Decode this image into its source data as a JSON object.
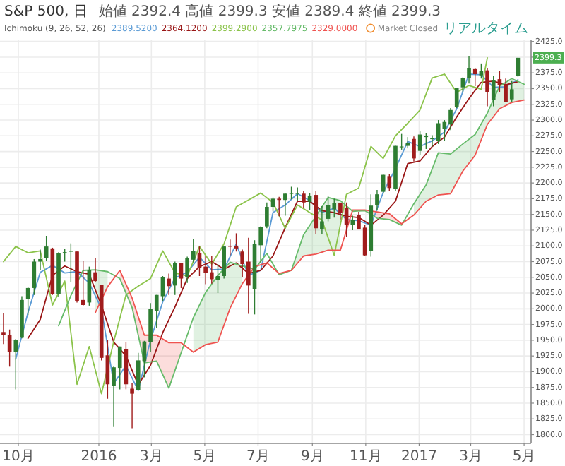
{
  "chart_data": {
    "type": "candlestick",
    "title": "S&P 500, 日",
    "subtitle": "始値 2392.4 高値 2399.3 安値 2389.4 終値 2399.3",
    "annotations": [
      "Ichimoku (9, 26, 52, 26)",
      "2389.5200",
      "2364.1200",
      "2399.2900",
      "2357.7975",
      "2329.0000",
      "Market Closed",
      "リアルタイム",
      "2399.3"
    ],
    "x": [
      "2015-09-14",
      "2015-09-21",
      "2015-09-28",
      "2015-10-05",
      "2015-10-12",
      "2015-10-19",
      "2015-10-26",
      "2015-11-02",
      "2015-11-09",
      "2015-11-16",
      "2015-11-23",
      "2015-11-30",
      "2015-12-07",
      "2015-12-14",
      "2015-12-21",
      "2015-12-28",
      "2016-01-04",
      "2016-01-11",
      "2016-01-18",
      "2016-01-25",
      "2016-02-01",
      "2016-02-08",
      "2016-02-15",
      "2016-02-22",
      "2016-02-29",
      "2016-03-07",
      "2016-03-14",
      "2016-03-21",
      "2016-03-28",
      "2016-04-04",
      "2016-04-11",
      "2016-04-18",
      "2016-04-25",
      "2016-05-02",
      "2016-05-09",
      "2016-05-16",
      "2016-05-23",
      "2016-05-30",
      "2016-06-06",
      "2016-06-13",
      "2016-06-20",
      "2016-06-27",
      "2016-07-04",
      "2016-07-11",
      "2016-07-18",
      "2016-07-25",
      "2016-08-01",
      "2016-08-08",
      "2016-08-15",
      "2016-08-22",
      "2016-08-29",
      "2016-09-05",
      "2016-09-12",
      "2016-09-19",
      "2016-09-26",
      "2016-10-03",
      "2016-10-10",
      "2016-10-17",
      "2016-10-24",
      "2016-10-31",
      "2016-11-07",
      "2016-11-14",
      "2016-11-21",
      "2016-11-28",
      "2016-12-05",
      "2016-12-12",
      "2016-12-19",
      "2016-12-26",
      "2017-01-02",
      "2017-01-09",
      "2017-01-16",
      "2017-01-23",
      "2017-01-30",
      "2017-02-06",
      "2017-02-13",
      "2017-02-20",
      "2017-02-27",
      "2017-03-06",
      "2017-03-13",
      "2017-03-20",
      "2017-03-27",
      "2017-04-03",
      "2017-04-10",
      "2017-04-17",
      "2017-04-24"
    ],
    "ohlc": [
      [
        1963,
        1993,
        1944,
        1958
      ],
      [
        1958,
        1967,
        1908,
        1931
      ],
      [
        1931,
        1952,
        1872,
        1951
      ],
      [
        1954,
        2020,
        1953,
        2014
      ],
      [
        2015,
        2034,
        1990,
        2033
      ],
      [
        2033,
        2079,
        2022,
        2075
      ],
      [
        2075,
        2094,
        2062,
        2079
      ],
      [
        2081,
        2116,
        2076,
        2099
      ],
      [
        2096,
        2097,
        2022,
        2023
      ],
      [
        2023,
        2090,
        2019,
        2089
      ],
      [
        2089,
        2095,
        2075,
        2090
      ],
      [
        2092,
        2104,
        2042,
        2092
      ],
      [
        2091,
        2091,
        2010,
        2012
      ],
      [
        2014,
        2076,
        2005,
        2006
      ],
      [
        2010,
        2067,
        2005,
        2061
      ],
      [
        2058,
        2081,
        2043,
        2044
      ],
      [
        2038,
        2038,
        1918,
        1922
      ],
      [
        1926,
        1950,
        1857,
        1880
      ],
      [
        1878,
        1908,
        1812,
        1907
      ],
      [
        1906,
        1940,
        1872,
        1940
      ],
      [
        1936,
        1947,
        1872,
        1880
      ],
      [
        1873,
        1882,
        1810,
        1865
      ],
      [
        1871,
        1930,
        1871,
        1918
      ],
      [
        1917,
        1949,
        1891,
        1948
      ],
      [
        1947,
        2009,
        1931,
        2000
      ],
      [
        1996,
        2022,
        1969,
        2022
      ],
      [
        2020,
        2052,
        2012,
        2050
      ],
      [
        2048,
        2056,
        2022,
        2036
      ],
      [
        2037,
        2075,
        2022,
        2073
      ],
      [
        2073,
        2073,
        2033,
        2048
      ],
      [
        2050,
        2083,
        2041,
        2081
      ],
      [
        2078,
        2111,
        2074,
        2092
      ],
      [
        2088,
        2099,
        2052,
        2065
      ],
      [
        2067,
        2084,
        2039,
        2057
      ],
      [
        2058,
        2084,
        2040,
        2047
      ],
      [
        2046,
        2071,
        2025,
        2052
      ],
      [
        2052,
        2100,
        2048,
        2099
      ],
      [
        2100,
        2110,
        2085,
        2099
      ],
      [
        2100,
        2120,
        2091,
        2096
      ],
      [
        2091,
        2094,
        2050,
        2071
      ],
      [
        2075,
        2113,
        1992,
        2037
      ],
      [
        2031,
        2109,
        1991,
        2103
      ],
      [
        2101,
        2131,
        2074,
        2130
      ],
      [
        2131,
        2169,
        2128,
        2162
      ],
      [
        2162,
        2177,
        2155,
        2175
      ],
      [
        2175,
        2178,
        2147,
        2173
      ],
      [
        2173,
        2183,
        2148,
        2183
      ],
      [
        2183,
        2194,
        2174,
        2184
      ],
      [
        2183,
        2193,
        2172,
        2184
      ],
      [
        2183,
        2187,
        2160,
        2169
      ],
      [
        2170,
        2184,
        2157,
        2180
      ],
      [
        2181,
        2187,
        2119,
        2128
      ],
      [
        2127,
        2163,
        2119,
        2139
      ],
      [
        2143,
        2180,
        2139,
        2165
      ],
      [
        2158,
        2175,
        2145,
        2168
      ],
      [
        2168,
        2169,
        2142,
        2153
      ],
      [
        2160,
        2169,
        2114,
        2133
      ],
      [
        2133,
        2148,
        2125,
        2141
      ],
      [
        2149,
        2154,
        2126,
        2126
      ],
      [
        2129,
        2133,
        2084,
        2085
      ],
      [
        2092,
        2182,
        2083,
        2164
      ],
      [
        2165,
        2189,
        2156,
        2182
      ],
      [
        2186,
        2214,
        2183,
        2213
      ],
      [
        2211,
        2214,
        2187,
        2192
      ],
      [
        2191,
        2259,
        2187,
        2259
      ],
      [
        2258,
        2278,
        2253,
        2258
      ],
      [
        2259,
        2273,
        2255,
        2263
      ],
      [
        2270,
        2274,
        2234,
        2239
      ],
      [
        2251,
        2282,
        2245,
        2277
      ],
      [
        2273,
        2279,
        2254,
        2275
      ],
      [
        2270,
        2276,
        2258,
        2271
      ],
      [
        2267,
        2300,
        2262,
        2295
      ],
      [
        2286,
        2300,
        2267,
        2297
      ],
      [
        2293,
        2319,
        2284,
        2316
      ],
      [
        2321,
        2351,
        2319,
        2351
      ],
      [
        2352,
        2368,
        2345,
        2367
      ],
      [
        2367,
        2401,
        2358,
        2383
      ],
      [
        2381,
        2382,
        2354,
        2373
      ],
      [
        2371,
        2390,
        2366,
        2378
      ],
      [
        2379,
        2382,
        2322,
        2344
      ],
      [
        2332,
        2370,
        2322,
        2363
      ],
      [
        2365,
        2378,
        2344,
        2355
      ],
      [
        2357,
        2366,
        2328,
        2329
      ],
      [
        2333,
        2362,
        2328,
        2349
      ],
      [
        2370,
        2399,
        2369,
        2399
      ]
    ],
    "colors": [
      "#a01c1c",
      "#a01c1c",
      "#2e7d32",
      "#2e7d32",
      "#2e7d32",
      "#2e7d32",
      "#2e7d32",
      "#2e7d32",
      "#a01c1c",
      "#2e7d32",
      "#2e7d32",
      "#2e7d32",
      "#a01c1c",
      "#a01c1c",
      "#2e7d32",
      "#a01c1c",
      "#a01c1c",
      "#a01c1c",
      "#2e7d32",
      "#2e7d32",
      "#a01c1c",
      "#a01c1c",
      "#2e7d32",
      "#2e7d32",
      "#2e7d32",
      "#2e7d32",
      "#2e7d32",
      "#a01c1c",
      "#2e7d32",
      "#a01c1c",
      "#2e7d32",
      "#2e7d32",
      "#a01c1c",
      "#a01c1c",
      "#a01c1c",
      "#2e7d32",
      "#2e7d32",
      "#a01c1c",
      "#a01c1c",
      "#a01c1c",
      "#a01c1c",
      "#2e7d32",
      "#2e7d32",
      "#2e7d32",
      "#2e7d32",
      "#a01c1c",
      "#2e7d32",
      "#2e7d32",
      "#2e7d32",
      "#a01c1c",
      "#2e7d32",
      "#a01c1c",
      "#2e7d32",
      "#2e7d32",
      "#2e7d32",
      "#a01c1c",
      "#a01c1c",
      "#2e7d32",
      "#a01c1c",
      "#a01c1c",
      "#2e7d32",
      "#2e7d32",
      "#2e7d32",
      "#a01c1c",
      "#2e7d32",
      "#2e7d32",
      "#2e7d32",
      "#a01c1c",
      "#2e7d32",
      "#2e7d32",
      "#2e7d32",
      "#2e7d32",
      "#2e7d32",
      "#2e7d32",
      "#2e7d32",
      "#2e7d32",
      "#2e7d32",
      "#a01c1c",
      "#2e7d32",
      "#a01c1c",
      "#2e7d32",
      "#a01c1c",
      "#a01c1c",
      "#2e7d32",
      "#2e7d32"
    ],
    "series": [
      {
        "type": "line",
        "color": "#5b9bd5",
        "x": [
          "2015-09-28",
          "2015-10-12",
          "2015-10-26",
          "2015-11-09",
          "2015-11-23",
          "2015-12-07",
          "2015-12-21",
          "2016-01-04",
          "2016-01-18",
          "2016-02-01",
          "2016-02-15",
          "2016-02-29",
          "2016-03-14",
          "2016-03-28",
          "2016-04-11",
          "2016-04-25",
          "2016-05-09",
          "2016-05-23",
          "2016-06-06",
          "2016-06-20",
          "2016-07-04",
          "2016-07-18",
          "2016-08-01",
          "2016-08-15",
          "2016-08-29",
          "2016-09-12",
          "2016-09-26",
          "2016-10-10",
          "2016-10-24",
          "2016-11-07",
          "2016-11-21",
          "2016-12-05",
          "2016-12-19",
          "2017-01-02",
          "2017-01-16",
          "2017-01-30",
          "2017-02-13",
          "2017-02-27",
          "2017-03-13",
          "2017-03-27",
          "2017-04-10",
          "2017-04-24"
        ],
        "values": [
          1920,
          1994,
          2058,
          2069,
          2057,
          2059,
          2041,
          2000,
          1881,
          1910,
          1870,
          1950,
          2011,
          2049,
          2058,
          2082,
          2062,
          2063,
          2103,
          2053,
          2061,
          2153,
          2165,
          2183,
          2172,
          2153,
          2160,
          2142,
          2140,
          2133,
          2185,
          2223,
          2266,
          2258,
          2267,
          2281,
          2318,
          2373,
          2372,
          2352,
          2353,
          2364
        ]
      },
      {
        "type": "line",
        "color": "#991515",
        "x": [
          "2015-10-12",
          "2015-10-26",
          "2015-11-09",
          "2015-11-23",
          "2015-12-07",
          "2015-12-21",
          "2016-01-04",
          "2016-01-18",
          "2016-02-01",
          "2016-02-15",
          "2016-02-29",
          "2016-03-14",
          "2016-03-28",
          "2016-04-11",
          "2016-04-25",
          "2016-05-09",
          "2016-05-23",
          "2016-06-06",
          "2016-06-20",
          "2016-07-04",
          "2016-07-18",
          "2016-08-01",
          "2016-08-15",
          "2016-08-29",
          "2016-09-12",
          "2016-09-26",
          "2016-10-10",
          "2016-10-24",
          "2016-11-07",
          "2016-11-21",
          "2016-12-05",
          "2016-12-19",
          "2017-01-02",
          "2017-01-16",
          "2017-01-30",
          "2017-02-13",
          "2017-02-27",
          "2017-03-13",
          "2017-03-27",
          "2017-04-10",
          "2017-04-24"
        ],
        "values": [
          1953,
          1983,
          2053,
          2068,
          2059,
          2055,
          2005,
          1947,
          1925,
          1879,
          1910,
          1962,
          2003,
          2048,
          2067,
          2075,
          2063,
          2073,
          2056,
          2061,
          2084,
          2129,
          2171,
          2171,
          2156,
          2153,
          2147,
          2145,
          2133,
          2149,
          2171,
          2231,
          2235,
          2258,
          2273,
          2305,
          2334,
          2360,
          2362,
          2356,
          2361
        ]
      },
      {
        "type": "line",
        "color": "#8bc34a",
        "x": [
          "2015-09-14",
          "2015-09-28",
          "2015-10-12",
          "2015-10-26",
          "2015-11-09",
          "2015-11-23",
          "2015-12-07",
          "2015-12-21",
          "2016-01-04",
          "2016-01-18",
          "2016-02-01",
          "2016-02-15",
          "2016-02-29",
          "2016-03-14",
          "2016-03-28",
          "2016-04-11",
          "2016-04-25",
          "2016-05-09",
          "2016-05-23",
          "2016-06-06",
          "2016-06-20",
          "2016-07-04",
          "2016-07-18",
          "2016-08-01",
          "2016-08-15",
          "2016-08-29",
          "2016-09-12",
          "2016-09-26",
          "2016-10-10",
          "2016-10-24",
          "2016-11-07",
          "2016-11-21",
          "2016-12-05",
          "2016-12-19",
          "2017-01-02",
          "2017-01-16",
          "2017-01-30",
          "2017-02-13",
          "2017-02-27",
          "2017-03-13",
          "2017-03-20"
        ],
        "values": [
          2075,
          2099,
          2089,
          2092,
          2006,
          2044,
          1880,
          1940,
          1865,
          1948,
          2022,
          2036,
          2048,
          2092,
          2057,
          2052,
          2099,
          2071,
          2103,
          2162,
          2173,
          2184,
          2169,
          2128,
          2165,
          2153,
          2141,
          2085,
          2182,
          2192,
          2258,
          2239,
          2275,
          2295,
          2316,
          2367,
          2373,
          2344,
          2355,
          2349,
          2399
        ]
      },
      {
        "type": "line",
        "color": "#66bb6a",
        "x": [
          "2015-11-16",
          "2015-11-30",
          "2015-12-14",
          "2015-12-28",
          "2016-01-11",
          "2016-01-25",
          "2016-02-08",
          "2016-02-22",
          "2016-03-07",
          "2016-03-21",
          "2016-04-04",
          "2016-04-18",
          "2016-05-02",
          "2016-05-16",
          "2016-05-30",
          "2016-06-13",
          "2016-06-27",
          "2016-07-11",
          "2016-07-25",
          "2016-08-08",
          "2016-08-22",
          "2016-09-05",
          "2016-09-19",
          "2016-10-03",
          "2016-10-17",
          "2016-10-31",
          "2016-11-14",
          "2016-11-28",
          "2016-12-12",
          "2016-12-26",
          "2017-01-09",
          "2017-01-23",
          "2017-02-06",
          "2017-02-20",
          "2017-03-06",
          "2017-03-20",
          "2017-04-03",
          "2017-04-17",
          "2017-05-01"
        ],
        "values": [
          1973,
          2021,
          2061,
          2062,
          2059,
          2048,
          2002,
          1914,
          1917,
          1874,
          1930,
          1986,
          2026,
          2053,
          2074,
          2068,
          2063,
          2088,
          2054,
          2061,
          2118,
          2147,
          2177,
          2172,
          2155,
          2156,
          2144,
          2142,
          2133,
          2167,
          2197,
          2248,
          2246,
          2262,
          2277,
          2311,
          2354,
          2366,
          2357
        ],
        "upper": [
          null,
          null,
          null,
          2062,
          2059,
          null,
          null,
          null,
          null,
          null,
          null,
          1986,
          2026,
          2053,
          2074,
          2068,
          null,
          null,
          null,
          2061,
          2118,
          2147,
          2177,
          2172,
          null,
          null,
          null,
          null,
          null,
          2167,
          2197,
          2248,
          2246,
          2262,
          2277,
          2311,
          2354,
          2366,
          2357
        ],
        "lower": [
          null,
          null,
          null,
          1994,
          2035,
          null,
          null,
          null,
          null,
          null,
          null,
          1931,
          1943,
          1947,
          2001,
          2040,
          null,
          null,
          null,
          2061,
          2084,
          2087,
          2093,
          2093,
          null,
          null,
          null,
          null,
          null,
          2149,
          2171,
          2181,
          2183,
          2219,
          2244,
          2293,
          2318,
          2328,
          2332
        ]
      },
      {
        "type": "line",
        "color": "#ef5350",
        "x": [
          "2015-12-28",
          "2016-01-11",
          "2016-01-25",
          "2016-02-08",
          "2016-02-22",
          "2016-03-07",
          "2016-03-21",
          "2016-04-04",
          "2016-04-18",
          "2016-05-02",
          "2016-05-16",
          "2016-05-30",
          "2016-06-13",
          "2016-06-27",
          "2016-07-11",
          "2016-07-25",
          "2016-08-08",
          "2016-08-22",
          "2016-09-05",
          "2016-09-19",
          "2016-10-03",
          "2016-10-17",
          "2016-10-31",
          "2016-11-14",
          "2016-11-28",
          "2016-12-12",
          "2016-12-26",
          "2017-01-09",
          "2017-01-23",
          "2017-02-06",
          "2017-02-20",
          "2017-03-06",
          "2017-03-20",
          "2017-04-03",
          "2017-04-17",
          "2017-05-01"
        ],
        "values": [
          1994,
          2035,
          2061,
          2017,
          1958,
          1958,
          1946,
          1946,
          1931,
          1943,
          1947,
          2001,
          2040,
          2067,
          2073,
          2056,
          2061,
          2084,
          2087,
          2093,
          2093,
          2157,
          2157,
          2154,
          2151,
          2135,
          2149,
          2171,
          2181,
          2183,
          2219,
          2244,
          2293,
          2318,
          2328,
          2332
        ],
        "upper": [
          null,
          null,
          2061,
          2017,
          1958,
          1958,
          1946,
          1946,
          null,
          null,
          null,
          null,
          null,
          null,
          null,
          null,
          null,
          null,
          null,
          null,
          null,
          2157,
          2157,
          2154,
          2151,
          2135,
          null,
          null,
          null,
          null,
          null,
          null,
          null,
          null,
          null,
          null
        ],
        "lower": [
          null,
          null,
          2048,
          2002,
          1914,
          1917,
          1874,
          1930,
          null,
          null,
          null,
          null,
          null,
          null,
          null,
          null,
          null,
          null,
          null,
          null,
          null,
          2155,
          2156,
          2144,
          2142,
          2133,
          null,
          null,
          null,
          null,
          null,
          null,
          null,
          null,
          null,
          null
        ]
      }
    ],
    "xlim": [
      "2015-09-10",
      "2017-05-09"
    ],
    "xticks": [
      {
        "value": "2015-10-01",
        "label": "10月"
      },
      {
        "value": "2016-01-01",
        "label": "2016"
      },
      {
        "value": "2016-03-01",
        "label": "3月"
      },
      {
        "value": "2016-05-01",
        "label": "5月"
      },
      {
        "value": "2016-07-01",
        "label": "7月"
      },
      {
        "value": "2016-09-01",
        "label": "9月"
      },
      {
        "value": "2016-11-01",
        "label": "11月"
      },
      {
        "value": "2017-01-01",
        "label": "2017"
      },
      {
        "value": "2017-03-01",
        "label": "3月"
      },
      {
        "value": "2017-05-01",
        "label": "5月"
      }
    ],
    "ylim": [
      1786,
      2428
    ],
    "yticks": [
      {
        "value": 1800,
        "label": "1800.0"
      },
      {
        "value": 1825,
        "label": "1825.0"
      },
      {
        "value": 1850,
        "label": "1850.0"
      },
      {
        "value": 1875,
        "label": "1875.0"
      },
      {
        "value": 1900,
        "label": "1900.0"
      },
      {
        "value": 1925,
        "label": "1925.0"
      },
      {
        "value": 1950,
        "label": "1950.0"
      },
      {
        "value": 1975,
        "label": "1975.0"
      },
      {
        "value": 2000,
        "label": "2000.0"
      },
      {
        "value": 2025,
        "label": "2025.0"
      },
      {
        "value": 2050,
        "label": "2050.0"
      },
      {
        "value": 2075,
        "label": "2075.0"
      },
      {
        "value": 2100,
        "label": "2100.0"
      },
      {
        "value": 2125,
        "label": "2125.0"
      },
      {
        "value": 2150,
        "label": "2150.0"
      },
      {
        "value": 2175,
        "label": "2175.0"
      },
      {
        "value": 2200,
        "label": "2200.0"
      },
      {
        "value": 2225,
        "label": "2225.0"
      },
      {
        "value": 2250,
        "label": "2250.0"
      },
      {
        "value": 2275,
        "label": "2275.0"
      },
      {
        "value": 2300,
        "label": "2300.0"
      },
      {
        "value": 2325,
        "label": "2325.0"
      },
      {
        "value": 2350,
        "label": "2350.0"
      },
      {
        "value": 2375,
        "label": "2375.0"
      },
      {
        "value": 2400,
        "label": null
      },
      {
        "value": 2425,
        "label": "2425.0"
      }
    ],
    "grid": true
  }
}
